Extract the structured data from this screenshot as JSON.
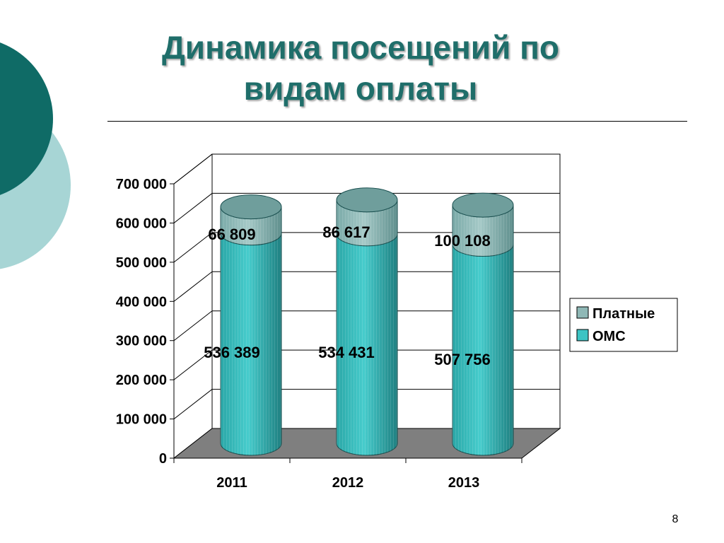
{
  "slide": {
    "title": "Динамика посещений по видам оплаты",
    "page_number": "8"
  },
  "colors": {
    "title": "#1f6e6a",
    "deco_dark": "#0f6b66",
    "deco_light": "#a7d5d5",
    "oms": "#3cc4c4",
    "paid": "#8fb8b6",
    "floor": "#7f7f7f"
  },
  "chart_data": {
    "type": "bar",
    "style": "3d-stacked-cylinder",
    "categories": [
      "2011",
      "2012",
      "2013"
    ],
    "series": [
      {
        "name": "ОМС",
        "values": [
          536389,
          534431,
          507756
        ],
        "labels": [
          "536 389",
          "534 431",
          "507 756"
        ],
        "color": "#3cc4c4"
      },
      {
        "name": "Платные",
        "values": [
          66809,
          86617,
          100108
        ],
        "labels": [
          "66 809",
          "86 617",
          "100 108"
        ],
        "color": "#8fb8b6"
      }
    ],
    "ylim": [
      0,
      700000
    ],
    "yticks": [
      {
        "value": 0,
        "label": "0"
      },
      {
        "value": 100000,
        "label": "100 000"
      },
      {
        "value": 200000,
        "label": "200 000"
      },
      {
        "value": 300000,
        "label": "300 000"
      },
      {
        "value": 400000,
        "label": "400 000"
      },
      {
        "value": 500000,
        "label": "500 000"
      },
      {
        "value": 600000,
        "label": "600 000"
      },
      {
        "value": 700000,
        "label": "700 000"
      }
    ],
    "legend": {
      "position": "right",
      "items": [
        {
          "label": "Платные",
          "color": "#8fb8b6"
        },
        {
          "label": "ОМС",
          "color": "#3cc4c4"
        }
      ]
    },
    "grid": true
  }
}
